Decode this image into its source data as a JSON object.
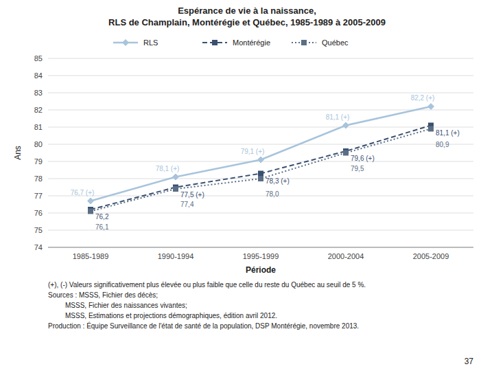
{
  "chart_data": {
    "type": "line",
    "title": "Espérance de vie à la naissance,\nRLS de Champlain, Montérégie et Québec, 1985-1989 à 2005-2009",
    "xlabel": "Période",
    "ylabel": "Ans",
    "categories": [
      "1985-1989",
      "1990-1994",
      "1995-1999",
      "2000-2004",
      "2005-2009"
    ],
    "series": [
      {
        "name": "RLS",
        "color": "#a8c4dc",
        "line_style": "solid",
        "marker": "diamond",
        "values": [
          76.7,
          78.1,
          79.1,
          81.1,
          82.2
        ],
        "value_labels": [
          "76,7 (+)",
          "78,1 (+)",
          "79,1 (+)",
          "81,1 (+)",
          "82,2 (+)"
        ]
      },
      {
        "name": "Montérégie",
        "color": "#3a5070",
        "line_style": "dashed",
        "marker": "square",
        "values": [
          76.2,
          77.5,
          78.3,
          79.6,
          81.1
        ],
        "value_labels": [
          "76,2",
          "77,5 (+)",
          "78,3 (+)",
          "79,6 (+)",
          "81,1 (+)"
        ]
      },
      {
        "name": "Québec",
        "color": "#5a6e85",
        "line_style": "dotted",
        "marker": "square",
        "values": [
          76.1,
          77.4,
          78.0,
          79.5,
          80.9
        ],
        "value_labels": [
          "76,1",
          "77,4",
          "78,0",
          "79,5",
          "80,9"
        ]
      }
    ],
    "ylim": [
      74,
      85
    ],
    "yticks": [
      74,
      75,
      76,
      77,
      78,
      79,
      80,
      81,
      82,
      83,
      84,
      85
    ],
    "grid": true,
    "legend": "top",
    "data_labels": true,
    "annotations": [
      "(+), (-) Valeurs significativement plus élevée ou plus faible que celle du reste du Québec au seuil de 5 %.",
      "Sources : MSSS, Fichier des décès;",
      "         MSSS, Fichier des naissances vivantes;",
      "         MSSS, Estimations et projections démographiques, édition avril 2012.",
      "Production : Équipe Surveillance de l'état de santé de la population, DSP Montérégie, novembre 2013.",
      "37"
    ]
  }
}
